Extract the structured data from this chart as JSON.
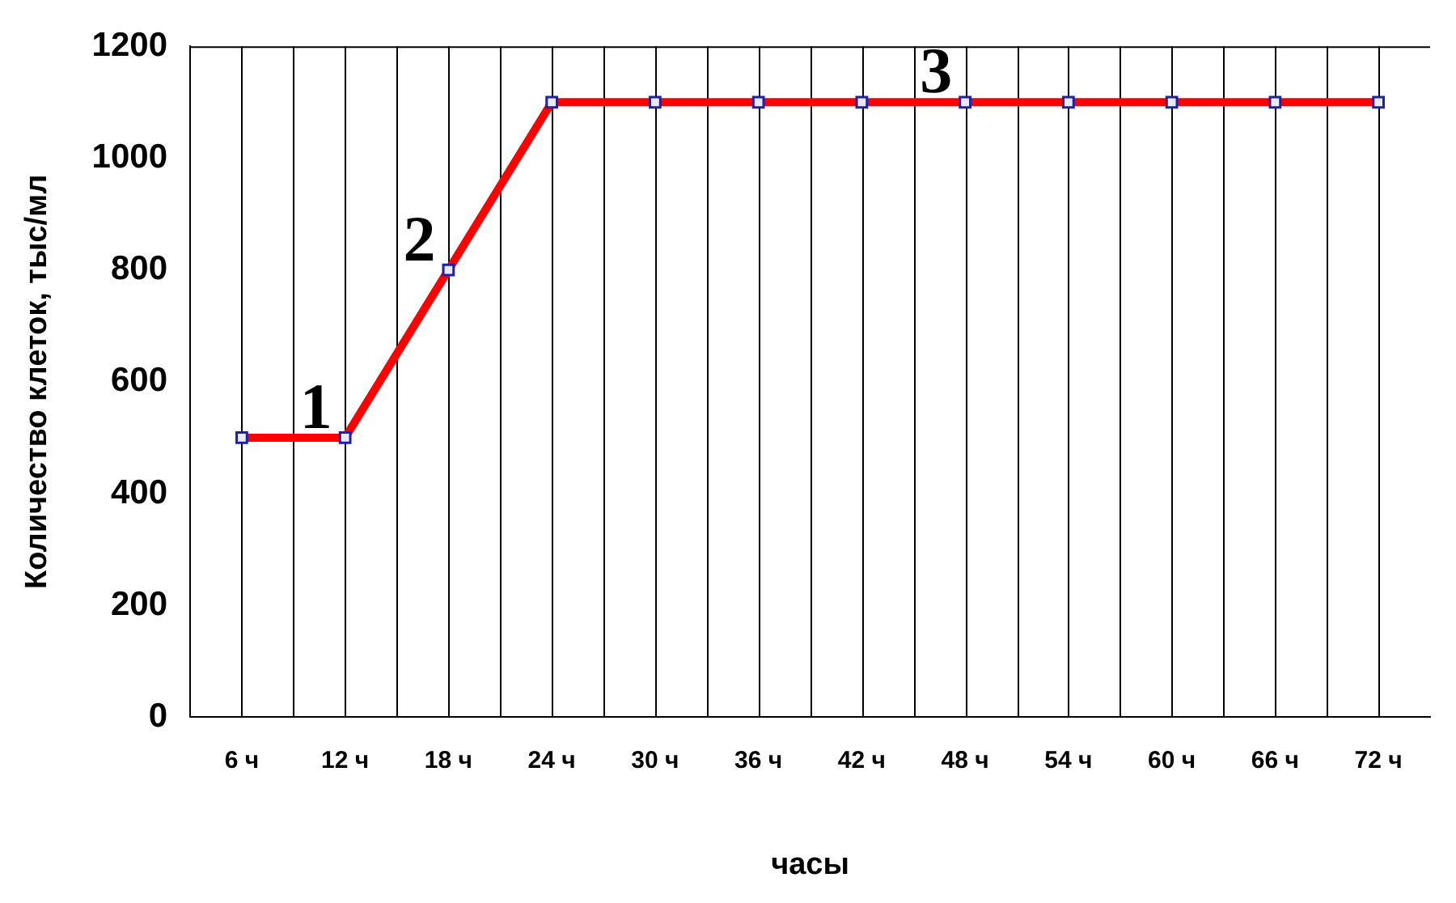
{
  "chart_data": {
    "type": "line",
    "xlabel": "часы",
    "ylabel": "Количество клеток, тыс/мл",
    "categories": [
      "6 ч",
      "12 ч",
      "18 ч",
      "24 ч",
      "30 ч",
      "36 ч",
      "42 ч",
      "48 ч",
      "54 ч",
      "60 ч",
      "66 ч",
      "72 ч"
    ],
    "series": [
      {
        "color": "#ff0000",
        "values": [
          500,
          500,
          800,
          1100,
          1100,
          1100,
          1100,
          1100,
          1100,
          1100,
          1100,
          1100
        ]
      }
    ],
    "ylim": [
      0,
      1200
    ],
    "yticks": [
      0,
      200,
      400,
      600,
      800,
      1000,
      1200
    ],
    "grid": "x",
    "legend": false,
    "marker": "square",
    "line_style": "solid",
    "annotations": [
      {
        "text": "1",
        "x": "12 ч",
        "y": 500
      },
      {
        "text": "2",
        "x": "18 ч",
        "y": 800
      },
      {
        "text": "3",
        "x": "48 ч",
        "y": 1100
      }
    ]
  }
}
